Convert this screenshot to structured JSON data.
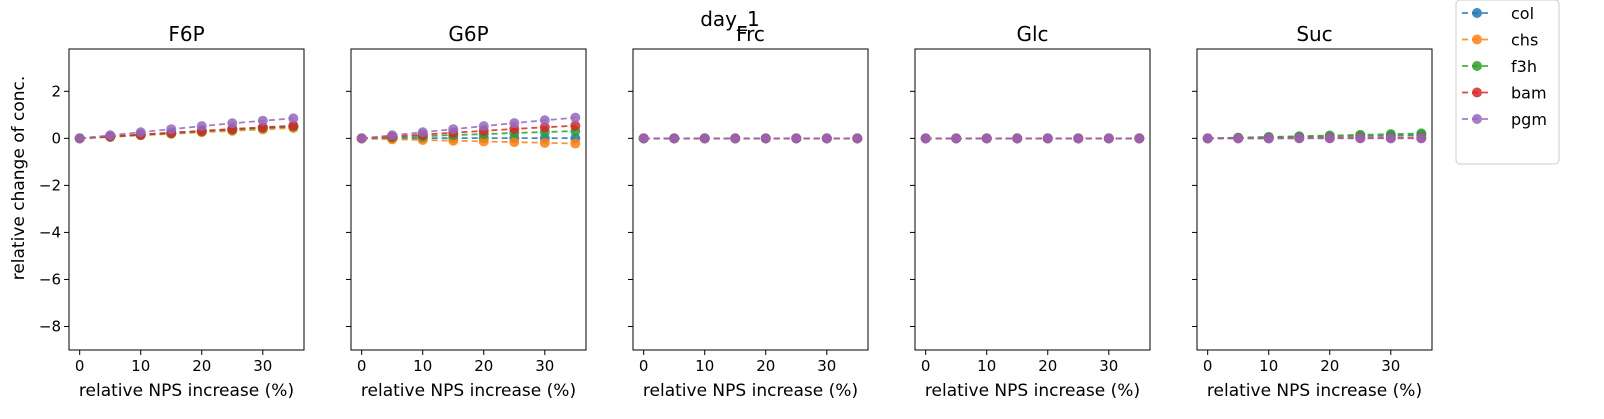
{
  "figure": {
    "suptitle": "day_1",
    "ylabel": "relative change of conc."
  },
  "legend": {
    "placement": "upper-right-outside",
    "entries": [
      {
        "name": "col",
        "color": "#1f77b4"
      },
      {
        "name": "chs",
        "color": "#ff7f0e"
      },
      {
        "name": "f3h",
        "color": "#2ca02c"
      },
      {
        "name": "bam",
        "color": "#d62728"
      },
      {
        "name": "pgm",
        "color": "#9467bd"
      }
    ]
  },
  "chart_data": [
    {
      "type": "line",
      "title": "F6P",
      "xlabel": "relative NPS increase (%)",
      "ylabel": "relative change of conc.",
      "x": [
        0,
        5,
        10,
        15,
        20,
        25,
        30,
        35
      ],
      "xlim": [
        -1.75,
        36.75
      ],
      "ylim": [
        -9,
        3.8
      ],
      "xticks": [
        0,
        10,
        20,
        30
      ],
      "yticks": [
        2,
        0,
        -2,
        -4,
        -6,
        -8
      ],
      "grid": false,
      "series": [
        {
          "name": "col",
          "values": [
            0,
            0.07,
            0.15,
            0.22,
            0.3,
            0.37,
            0.44,
            0.5
          ]
        },
        {
          "name": "chs",
          "values": [
            0,
            0.06,
            0.13,
            0.19,
            0.26,
            0.32,
            0.38,
            0.44
          ]
        },
        {
          "name": "f3h",
          "values": [
            0,
            0.07,
            0.15,
            0.22,
            0.3,
            0.37,
            0.44,
            0.5
          ]
        },
        {
          "name": "bam",
          "values": [
            0,
            0.08,
            0.16,
            0.24,
            0.32,
            0.4,
            0.47,
            0.54
          ]
        },
        {
          "name": "pgm",
          "values": [
            0,
            0.13,
            0.26,
            0.39,
            0.52,
            0.64,
            0.75,
            0.85
          ]
        }
      ]
    },
    {
      "type": "line",
      "title": "G6P",
      "xlabel": "relative NPS increase (%)",
      "ylabel": "",
      "x": [
        0,
        5,
        10,
        15,
        20,
        25,
        30,
        35
      ],
      "xlim": [
        -1.75,
        36.75
      ],
      "ylim": [
        -9,
        3.8
      ],
      "xticks": [
        0,
        10,
        20,
        30
      ],
      "yticks": [
        2,
        0,
        -2,
        -4,
        -6,
        -8
      ],
      "grid": false,
      "series": [
        {
          "name": "col",
          "values": [
            0,
            0.0,
            0.01,
            0.01,
            0.01,
            0.01,
            0.01,
            0.01
          ]
        },
        {
          "name": "chs",
          "values": [
            0,
            -0.04,
            -0.07,
            -0.1,
            -0.13,
            -0.16,
            -0.19,
            -0.22
          ]
        },
        {
          "name": "f3h",
          "values": [
            0,
            0.05,
            0.09,
            0.14,
            0.18,
            0.23,
            0.27,
            0.31
          ]
        },
        {
          "name": "bam",
          "values": [
            0,
            0.08,
            0.16,
            0.24,
            0.32,
            0.4,
            0.47,
            0.54
          ]
        },
        {
          "name": "pgm",
          "values": [
            0,
            0.13,
            0.26,
            0.39,
            0.52,
            0.65,
            0.77,
            0.88
          ]
        }
      ]
    },
    {
      "type": "line",
      "title": "Frc",
      "xlabel": "relative NPS increase (%)",
      "ylabel": "",
      "x": [
        0,
        5,
        10,
        15,
        20,
        25,
        30,
        35
      ],
      "xlim": [
        -1.75,
        36.75
      ],
      "ylim": [
        -9,
        3.8
      ],
      "xticks": [
        0,
        10,
        20,
        30
      ],
      "yticks": [
        2,
        0,
        -2,
        -4,
        -6,
        -8
      ],
      "grid": false,
      "series": [
        {
          "name": "col",
          "values": [
            0,
            0,
            0,
            0,
            0,
            0,
            0,
            0
          ]
        },
        {
          "name": "chs",
          "values": [
            0,
            0,
            0,
            0,
            0,
            0,
            0,
            0
          ]
        },
        {
          "name": "f3h",
          "values": [
            0,
            0,
            0,
            0,
            0,
            0,
            0,
            0
          ]
        },
        {
          "name": "bam",
          "values": [
            0,
            0,
            0,
            0,
            0,
            0,
            0,
            0
          ]
        },
        {
          "name": "pgm",
          "values": [
            0,
            0,
            0,
            0,
            0,
            0,
            0,
            0
          ]
        }
      ]
    },
    {
      "type": "line",
      "title": "Glc",
      "xlabel": "relative NPS increase (%)",
      "ylabel": "",
      "x": [
        0,
        5,
        10,
        15,
        20,
        25,
        30,
        35
      ],
      "xlim": [
        -1.75,
        36.75
      ],
      "ylim": [
        -9,
        3.8
      ],
      "xticks": [
        0,
        10,
        20,
        30
      ],
      "yticks": [
        2,
        0,
        -2,
        -4,
        -6,
        -8
      ],
      "grid": false,
      "series": [
        {
          "name": "col",
          "values": [
            0,
            0,
            0,
            0,
            0,
            0,
            0,
            0
          ]
        },
        {
          "name": "chs",
          "values": [
            0,
            0,
            0,
            0,
            0,
            0,
            0,
            0
          ]
        },
        {
          "name": "f3h",
          "values": [
            0,
            0,
            0,
            0,
            0,
            0,
            0,
            0
          ]
        },
        {
          "name": "bam",
          "values": [
            0,
            0,
            0,
            0,
            0,
            0,
            0,
            0
          ]
        },
        {
          "name": "pgm",
          "values": [
            0,
            0,
            0,
            0,
            0,
            0,
            0,
            0
          ]
        }
      ]
    },
    {
      "type": "line",
      "title": "Suc",
      "xlabel": "relative NPS increase (%)",
      "ylabel": "",
      "x": [
        0,
        5,
        10,
        15,
        20,
        25,
        30,
        35
      ],
      "xlim": [
        -1.75,
        36.75
      ],
      "ylim": [
        -9,
        3.8
      ],
      "xticks": [
        0,
        10,
        20,
        30
      ],
      "yticks": [
        2,
        0,
        -2,
        -4,
        -6,
        -8
      ],
      "grid": false,
      "series": [
        {
          "name": "col",
          "values": [
            0,
            0.02,
            0.04,
            0.06,
            0.08,
            0.1,
            0.12,
            0.14
          ]
        },
        {
          "name": "chs",
          "values": [
            0,
            0.01,
            0.02,
            0.02,
            0.03,
            0.04,
            0.04,
            0.05
          ]
        },
        {
          "name": "f3h",
          "values": [
            0,
            0.03,
            0.06,
            0.09,
            0.12,
            0.15,
            0.18,
            0.21
          ]
        },
        {
          "name": "bam",
          "values": [
            0,
            0.0,
            0.0,
            0.01,
            0.01,
            0.01,
            0.01,
            0.01
          ]
        },
        {
          "name": "pgm",
          "values": [
            0,
            0.0,
            0.0,
            0.0,
            0.0,
            0.0,
            0.0,
            0.0
          ]
        }
      ]
    }
  ]
}
